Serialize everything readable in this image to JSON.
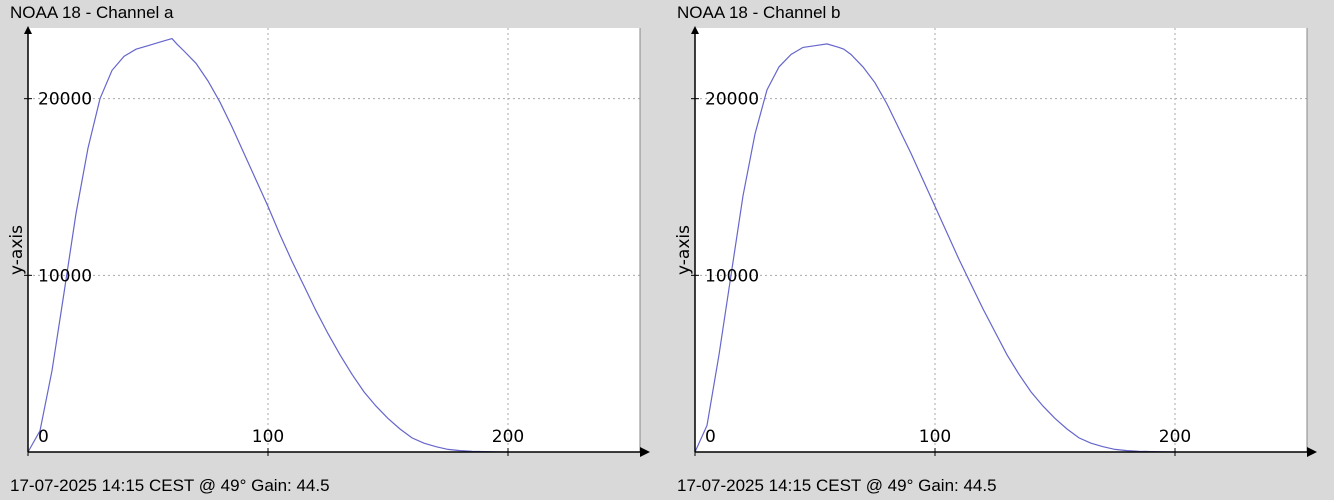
{
  "colors": {
    "background": "#d9d9d9",
    "plot_background": "#ffffff",
    "line": "#6666cc",
    "grid": "#aaaaaa",
    "axis": "#000000"
  },
  "panels": [
    {
      "title": "NOAA 18 - Channel a",
      "footer": "17-07-2025 14:15 CEST @ 49° Gain: 44.5"
    },
    {
      "title": "NOAA 18 - Channel b",
      "footer": "17-07-2025 14:15 CEST @ 49° Gain: 44.5"
    }
  ],
  "chart_data": [
    {
      "type": "line",
      "title": "NOAA 18 - Channel a",
      "xlabel": "",
      "ylabel": "y-axis",
      "xlim": [
        0,
        255
      ],
      "ylim": [
        0,
        24000
      ],
      "xticks": [
        0,
        100,
        200
      ],
      "xtick_labels": [
        "0",
        "100",
        "200"
      ],
      "yticks": [
        10000,
        20000
      ],
      "ytick_labels": [
        "10000",
        "20000"
      ],
      "grid": true,
      "series": [
        {
          "x": [
            0,
            5,
            10,
            15,
            20,
            25,
            30,
            35,
            40,
            45,
            50,
            55,
            60,
            62,
            65,
            70,
            75,
            80,
            85,
            90,
            95,
            100,
            105,
            110,
            115,
            120,
            125,
            130,
            135,
            140,
            145,
            150,
            155,
            160,
            165,
            170,
            175,
            180,
            185,
            190,
            195,
            200
          ],
          "y": [
            0,
            1200,
            4600,
            9000,
            13500,
            17200,
            20000,
            21600,
            22400,
            22800,
            23000,
            23200,
            23400,
            23100,
            22700,
            22000,
            21000,
            19800,
            18400,
            16900,
            15400,
            13900,
            12300,
            10800,
            9400,
            8000,
            6700,
            5500,
            4400,
            3400,
            2600,
            1900,
            1300,
            800,
            500,
            300,
            150,
            80,
            40,
            20,
            10,
            0
          ]
        }
      ]
    },
    {
      "type": "line",
      "title": "NOAA 18 - Channel b",
      "xlabel": "",
      "ylabel": "y-axis",
      "xlim": [
        0,
        255
      ],
      "ylim": [
        0,
        24000
      ],
      "xticks": [
        0,
        100,
        200
      ],
      "xtick_labels": [
        "0",
        "100",
        "200"
      ],
      "yticks": [
        10000,
        20000
      ],
      "ytick_labels": [
        "10000",
        "20000"
      ],
      "grid": true,
      "series": [
        {
          "x": [
            0,
            5,
            10,
            15,
            20,
            25,
            30,
            35,
            40,
            45,
            50,
            55,
            60,
            62,
            65,
            70,
            75,
            80,
            85,
            90,
            95,
            100,
            105,
            110,
            115,
            120,
            125,
            130,
            135,
            140,
            145,
            150,
            155,
            160,
            165,
            170,
            175,
            180,
            185,
            190,
            195,
            200
          ],
          "y": [
            0,
            1500,
            5500,
            10000,
            14500,
            18000,
            20500,
            21800,
            22500,
            22900,
            23000,
            23100,
            22900,
            22800,
            22500,
            21800,
            20900,
            19700,
            18300,
            16900,
            15400,
            13900,
            12400,
            10900,
            9500,
            8100,
            6800,
            5500,
            4400,
            3400,
            2600,
            1900,
            1300,
            800,
            500,
            300,
            150,
            80,
            40,
            20,
            10,
            0
          ]
        }
      ]
    }
  ]
}
